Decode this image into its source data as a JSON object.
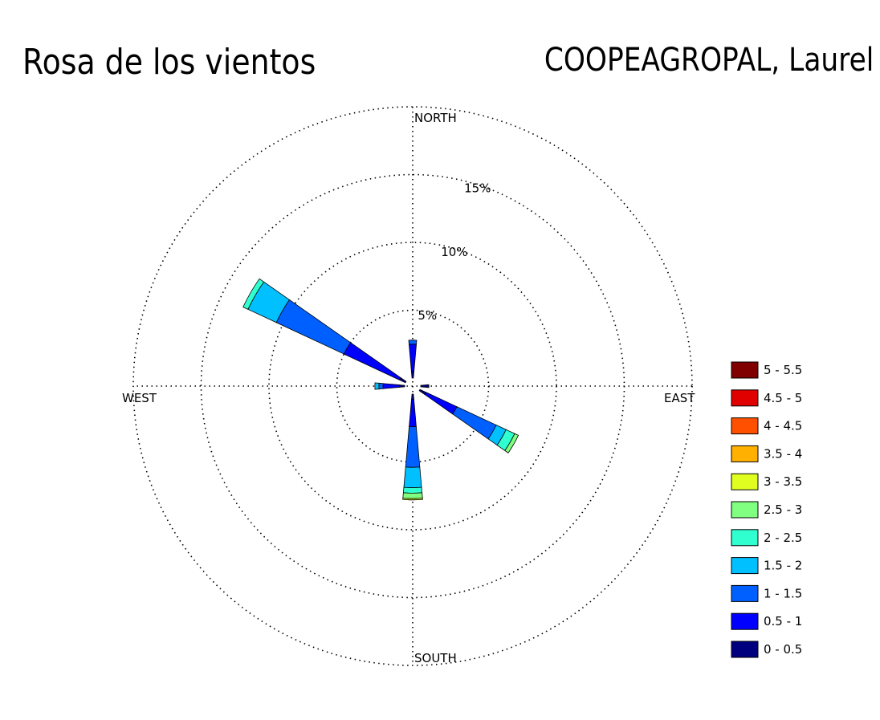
{
  "chart_data": {
    "type": "wind-rose",
    "title": "Rosa de los vientos",
    "subtitle": "COOPEAGROPAL, Laurel",
    "directions": {
      "north": "NORTH",
      "south": "SOUTH",
      "east": "EAST",
      "west": "WEST"
    },
    "rings": [
      {
        "value": 5,
        "label": "5%"
      },
      {
        "value": 10,
        "label": "10%"
      },
      {
        "value": 15,
        "label": "15%"
      },
      {
        "value": 20,
        "label": ""
      }
    ],
    "rmax": 20,
    "grid": true,
    "legend_position": "right",
    "bins": [
      {
        "label": "0 - 0.5",
        "color": "#00007f"
      },
      {
        "label": "0.5 - 1",
        "color": "#0000ff"
      },
      {
        "label": "1 - 1.5",
        "color": "#0060ff"
      },
      {
        "label": "1.5 - 2",
        "color": "#00c0ff"
      },
      {
        "label": "2 - 2.5",
        "color": "#30ffd0"
      },
      {
        "label": "2.5 - 3",
        "color": "#80ff80"
      },
      {
        "label": "3 - 3.5",
        "color": "#e0ff20"
      },
      {
        "label": "3.5 - 4",
        "color": "#ffb000"
      },
      {
        "label": "4 - 4.5",
        "color": "#ff5000"
      },
      {
        "label": "4.5 - 5",
        "color": "#e00000"
      },
      {
        "label": "5 - 5.5",
        "color": "#800000"
      }
    ],
    "sectors": [
      {
        "direction_deg": 0,
        "values": [
          0.5,
          2.0,
          0.3,
          0,
          0,
          0,
          0,
          0,
          0,
          0,
          0
        ]
      },
      {
        "direction_deg": 90,
        "values": [
          0.6,
          0.0,
          0.0,
          0,
          0,
          0,
          0,
          0,
          0,
          0,
          0
        ]
      },
      {
        "direction_deg": 120,
        "values": [
          0.5,
          2.5,
          3.2,
          0.8,
          0.7,
          0.3,
          0,
          0,
          0,
          0,
          0
        ]
      },
      {
        "direction_deg": 180,
        "values": [
          0.4,
          2.0,
          3.0,
          1.5,
          0.4,
          0.4,
          0.1,
          0,
          0,
          0,
          0
        ]
      },
      {
        "direction_deg": 270,
        "values": [
          0.4,
          1.2,
          0.3,
          0.3,
          0,
          0,
          0,
          0,
          0,
          0,
          0
        ]
      },
      {
        "direction_deg": 300,
        "values": [
          0.5,
          4.5,
          5.5,
          2.3,
          0.4,
          0,
          0,
          0,
          0,
          0,
          0
        ]
      }
    ]
  }
}
